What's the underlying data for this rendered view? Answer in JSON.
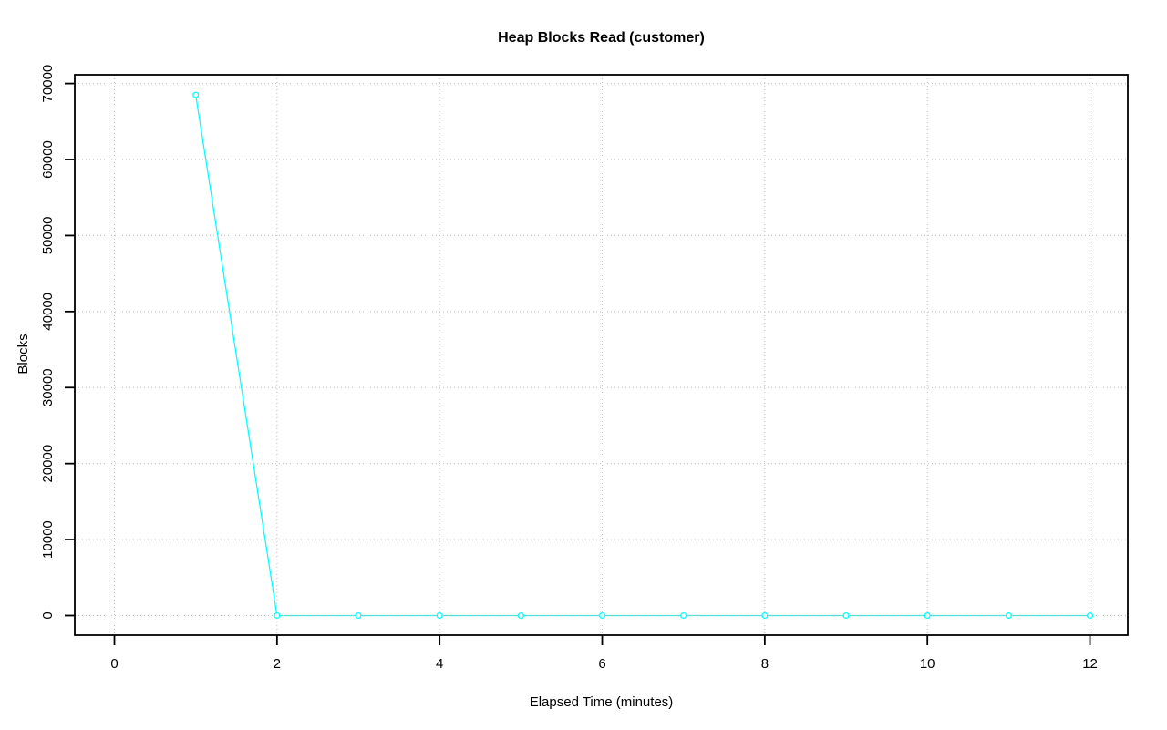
{
  "page": {
    "background": "#ffffff"
  },
  "chart_data": {
    "type": "line",
    "title": "Heap Blocks Read (customer)",
    "xlabel": "Elapsed Time (minutes)",
    "ylabel": "Blocks",
    "x": [
      1,
      2,
      3,
      4,
      5,
      6,
      7,
      8,
      9,
      10,
      11,
      12
    ],
    "y": [
      68500,
      0,
      0,
      0,
      0,
      0,
      0,
      0,
      0,
      0,
      0,
      0
    ],
    "xticks": [
      0,
      2,
      4,
      6,
      8,
      10,
      12
    ],
    "yticks": [
      0,
      10000,
      20000,
      30000,
      40000,
      50000,
      60000,
      70000
    ],
    "xlim": [
      0,
      12
    ],
    "ylim": [
      0,
      70000
    ],
    "grid": "dotted",
    "legend": "none",
    "marker": "open-circle",
    "colors": {
      "line": "#00FFFF",
      "marker_fill": "#FFFFFF",
      "grid": "#BFBFBF",
      "axis": "#000000",
      "text": "#000000"
    }
  }
}
